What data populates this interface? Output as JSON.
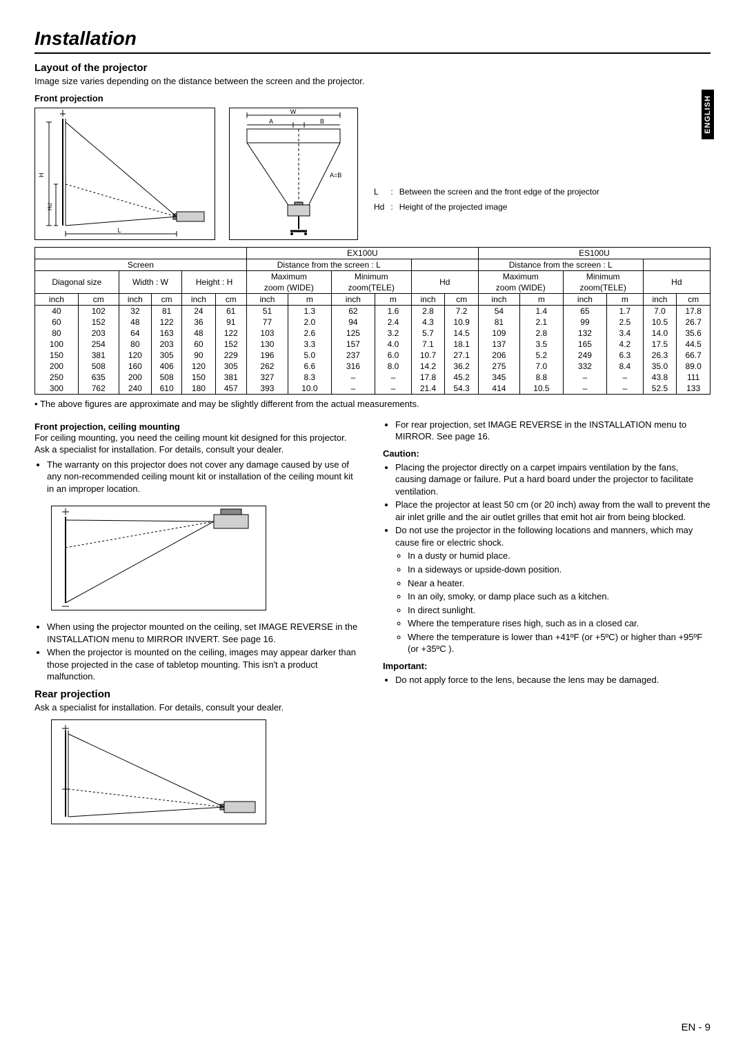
{
  "page_title": "Installation",
  "language_tab": "ENGLISH",
  "page_number": "EN - 9",
  "section_title": "Layout of the projector",
  "section_intro": "Image size varies depending on the distance between the screen and the projector.",
  "front_proj_heading": "Front projection",
  "diagram_labels": {
    "W": "W",
    "A": "A",
    "B": "B",
    "AeqB": "A=B",
    "H": "H",
    "Hd": "Hd",
    "L": "L"
  },
  "legend": {
    "L": "Between the screen and the front edge of the projector",
    "Hd": "Height of the projected image"
  },
  "table": {
    "model1": "EX100U",
    "model2": "ES100U",
    "screen": "Screen",
    "dist": "Distance from the screen : L",
    "diagonal": "Diagonal size",
    "width": "Width : W",
    "height": "Height : H",
    "maxzoom": "Maximum",
    "maxzoom2": "zoom (WIDE)",
    "minzoom": "Minimum",
    "minzoom2": "zoom(TELE)",
    "hd": "Hd",
    "inch": "inch",
    "cm": "cm",
    "m": "m",
    "rows": [
      [
        "40",
        "102",
        "32",
        "81",
        "24",
        "61",
        "51",
        "1.3",
        "62",
        "1.6",
        "2.8",
        "7.2",
        "54",
        "1.4",
        "65",
        "1.7",
        "7.0",
        "17.8"
      ],
      [
        "60",
        "152",
        "48",
        "122",
        "36",
        "91",
        "77",
        "2.0",
        "94",
        "2.4",
        "4.3",
        "10.9",
        "81",
        "2.1",
        "99",
        "2.5",
        "10.5",
        "26.7"
      ],
      [
        "80",
        "203",
        "64",
        "163",
        "48",
        "122",
        "103",
        "2.6",
        "125",
        "3.2",
        "5.7",
        "14.5",
        "109",
        "2.8",
        "132",
        "3.4",
        "14.0",
        "35.6"
      ],
      [
        "100",
        "254",
        "80",
        "203",
        "60",
        "152",
        "130",
        "3.3",
        "157",
        "4.0",
        "7.1",
        "18.1",
        "137",
        "3.5",
        "165",
        "4.2",
        "17.5",
        "44.5"
      ],
      [
        "150",
        "381",
        "120",
        "305",
        "90",
        "229",
        "196",
        "5.0",
        "237",
        "6.0",
        "10.7",
        "27.1",
        "206",
        "5.2",
        "249",
        "6.3",
        "26.3",
        "66.7"
      ],
      [
        "200",
        "508",
        "160",
        "406",
        "120",
        "305",
        "262",
        "6.6",
        "316",
        "8.0",
        "14.2",
        "36.2",
        "275",
        "7.0",
        "332",
        "8.4",
        "35.0",
        "89.0"
      ],
      [
        "250",
        "635",
        "200",
        "508",
        "150",
        "381",
        "327",
        "8.3",
        "–",
        "–",
        "17.8",
        "45.2",
        "345",
        "8.8",
        "–",
        "–",
        "43.8",
        "111"
      ],
      [
        "300",
        "762",
        "240",
        "610",
        "180",
        "457",
        "393",
        "10.0",
        "–",
        "–",
        "21.4",
        "54.3",
        "414",
        "10.5",
        "–",
        "–",
        "52.5",
        "133"
      ]
    ]
  },
  "table_note": "The above figures are approximate and may be slightly different from the actual measurements.",
  "ceiling": {
    "heading": "Front projection, ceiling mounting",
    "intro": "For ceiling mounting, you need the ceiling mount kit designed for this projector. Ask a specialist for installation. For details, consult your dealer.",
    "bullet1": "The warranty on this projector does not cover any damage caused by use of any non-recommended ceiling mount kit or installation of the ceiling mount kit in an improper location.",
    "bullet2": "When using the projector mounted on the ceiling, set IMAGE REVERSE in the INSTALLATION menu to MIRROR INVERT. See page 16.",
    "bullet3": "When the projector is mounted on the ceiling, images may appear darker than those projected in the case of tabletop mounting. This isn't a product malfunction."
  },
  "rear": {
    "heading": "Rear projection",
    "intro": "Ask a specialist for installation.  For details, consult your dealer."
  },
  "right_col": {
    "rear_bullet": "For rear projection, set IMAGE REVERSE in the INSTALLATION menu to MIRROR.  See page 16.",
    "caution_h": "Caution:",
    "c1": "Placing the projector directly on a carpet impairs ventilation by the fans, causing damage or failure. Put a hard board under the projector to facilitate ventilation.",
    "c2": "Place the projector at least 50 cm (or 20 inch) away from the wall to prevent the air inlet grille and the air outlet grilles that emit hot air from being blocked.",
    "c3": "Do not use the projector in the following locations and manners, which may cause fire or electric shock.",
    "c3a": "In a dusty or humid place.",
    "c3b": "In a sideways or upside-down position.",
    "c3c": "Near a heater.",
    "c3d": "In an oily, smoky, or damp place such as a kitchen.",
    "c3e": "In direct sunlight.",
    "c3f": "Where the temperature rises high, such as in a closed car.",
    "c3g": "Where the temperature is lower than +41ºF (or +5ºC) or higher than +95ºF (or +35ºC ).",
    "important_h": "Important:",
    "imp1": "Do not apply force to the lens, because the lens may be damaged."
  }
}
